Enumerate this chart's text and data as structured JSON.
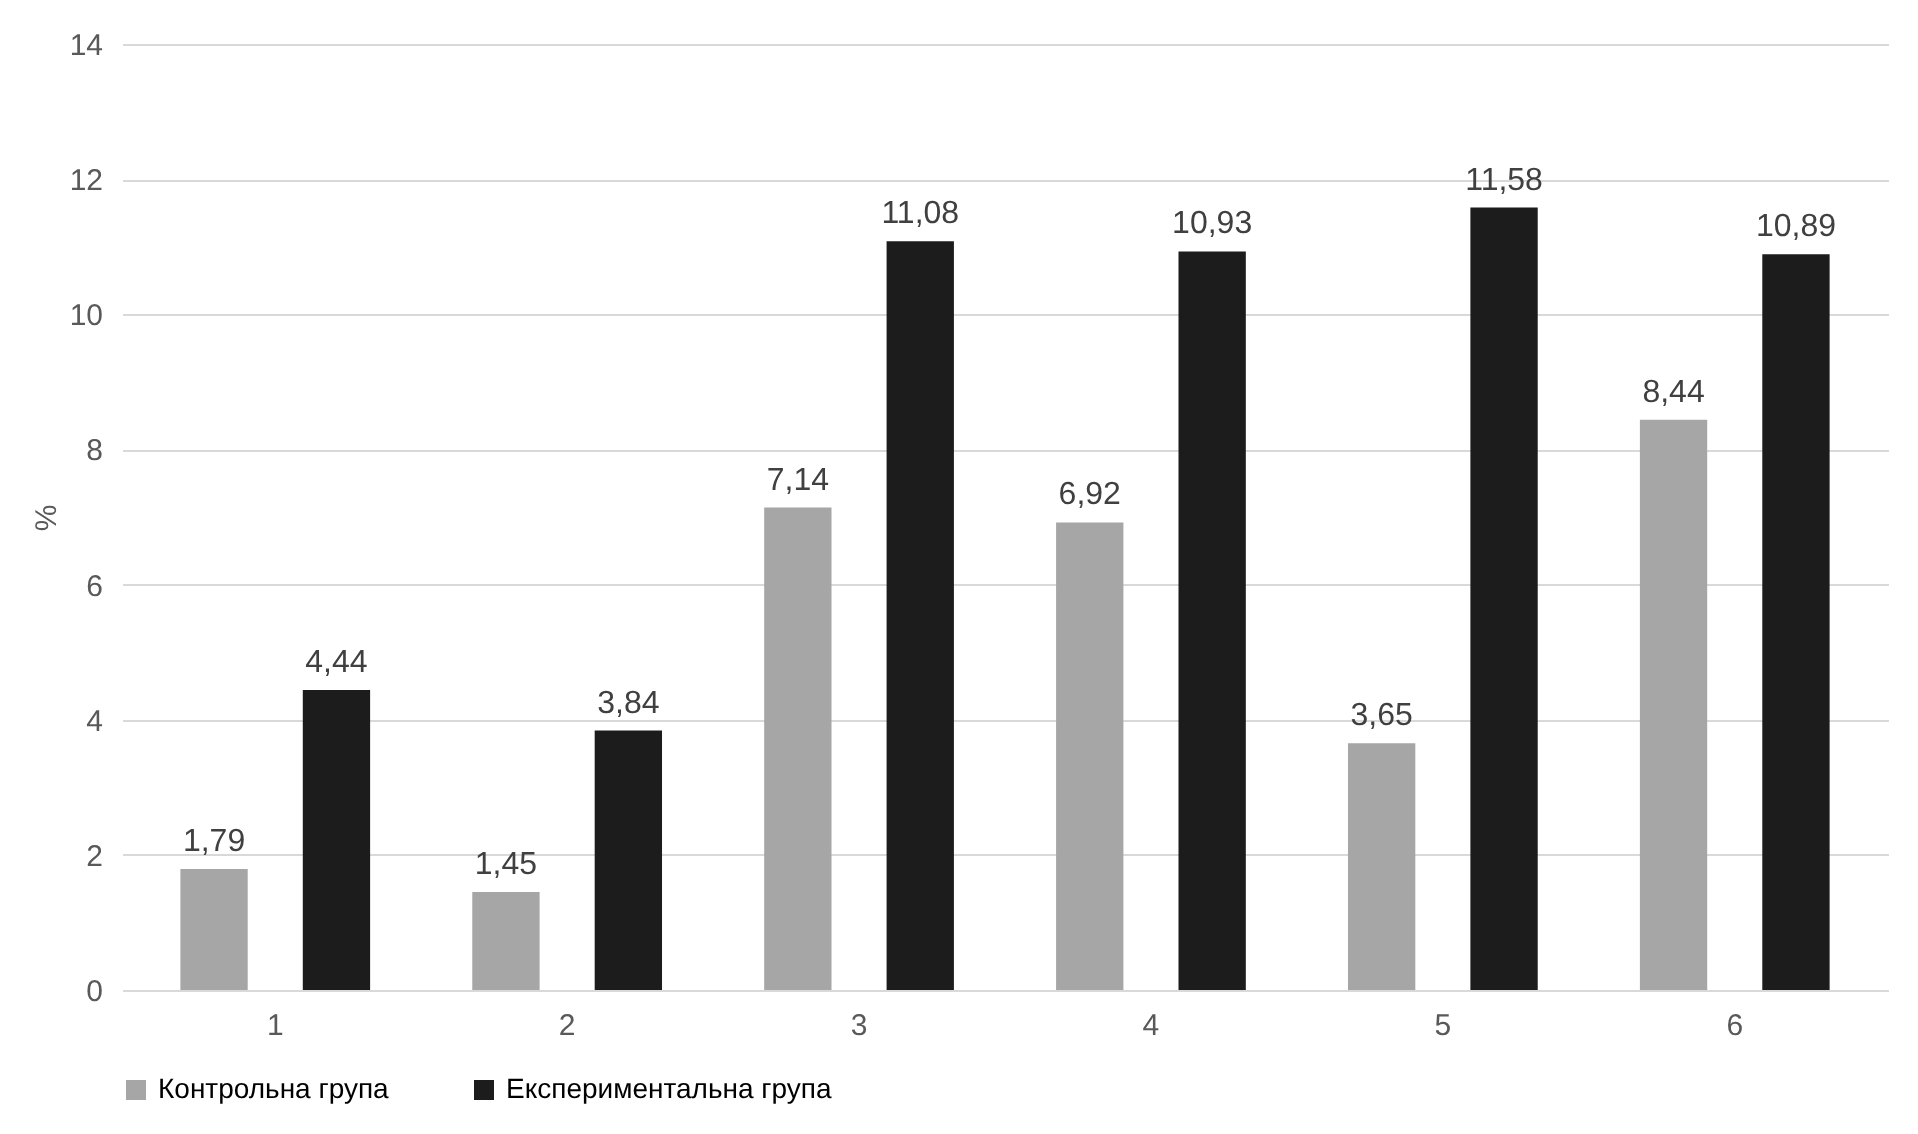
{
  "chart_data": {
    "type": "bar",
    "ylabel": "%",
    "categories": [
      "1",
      "2",
      "3",
      "4",
      "5",
      "6"
    ],
    "series": [
      {
        "name": "Контрольна група",
        "color": "#a6a6a6",
        "values": [
          1.79,
          1.45,
          7.14,
          6.92,
          3.65,
          8.44
        ],
        "value_labels": [
          "1,79",
          "1,45",
          "7,14",
          "6,92",
          "3,65",
          "8,44"
        ]
      },
      {
        "name": "Експериментальна група",
        "color": "#1c1c1c",
        "values": [
          4.44,
          3.84,
          11.08,
          10.93,
          11.58,
          10.89
        ],
        "value_labels": [
          "4,44",
          "3,84",
          "11,08",
          "10,93",
          "11,58",
          "10,89"
        ]
      }
    ],
    "ylim": [
      0,
      14
    ],
    "yticks": [
      0,
      2,
      4,
      6,
      8,
      10,
      12,
      14
    ],
    "grid": "y",
    "legend": "bottom"
  }
}
